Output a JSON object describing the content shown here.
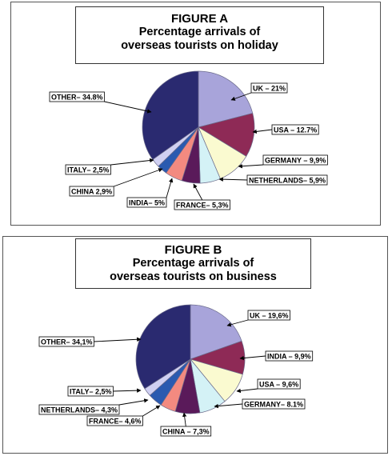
{
  "chart_data": [
    {
      "type": "pie",
      "title": "FIGURE A",
      "subtitle_line1": "Percentage arrivals of",
      "subtitle_line2": "overseas tourists on holiday",
      "slices": [
        {
          "name": "UK",
          "value": 21,
          "label": "UK – 21%",
          "color": "#a8a4da"
        },
        {
          "name": "USA",
          "value": 12.7,
          "label": "USA – 12.7%",
          "color": "#8e2a56"
        },
        {
          "name": "GERMANY",
          "value": 9.9,
          "label": "GERMANY – 9,9%",
          "color": "#fafad0"
        },
        {
          "name": "NETHERLANDS",
          "value": 5.9,
          "label": "NETHERLANDS– 5,9%",
          "color": "#d4f2f6"
        },
        {
          "name": "FRANCE",
          "value": 5.3,
          "label": "FRANCE– 5,3%",
          "color": "#5a1a5a"
        },
        {
          "name": "INDIA",
          "value": 5,
          "label": "INDIA– 5%",
          "color": "#f38a80"
        },
        {
          "name": "CHINA",
          "value": 2.9,
          "label": "CHINA 2,9%",
          "color": "#2a5ab0"
        },
        {
          "name": "ITALY",
          "value": 2.5,
          "label": "ITALY– 2,5%",
          "color": "#d0d0f2"
        },
        {
          "name": "OTHER",
          "value": 34.8,
          "label": "OTHER– 34.8%",
          "color": "#2a2a70"
        }
      ]
    },
    {
      "type": "pie",
      "title": "FIGURE B",
      "subtitle_line1": "Percentage arrivals of",
      "subtitle_line2": "overseas tourists on business",
      "slices": [
        {
          "name": "UK",
          "value": 19.6,
          "label": "UK – 19,6%",
          "color": "#a8a4da"
        },
        {
          "name": "INDIA",
          "value": 9.9,
          "label": "INDIA – 9,9%",
          "color": "#8e2a56"
        },
        {
          "name": "USA",
          "value": 9.6,
          "label": "USA – 9,6%",
          "color": "#fafad0"
        },
        {
          "name": "GERMANY",
          "value": 8.1,
          "label": "GERMANY– 8.1%",
          "color": "#d4f2f6"
        },
        {
          "name": "CHINA",
          "value": 7.3,
          "label": "CHINA – 7,3%",
          "color": "#5a1a5a"
        },
        {
          "name": "FRANCE",
          "value": 4.6,
          "label": "FRANCE– 4,6%",
          "color": "#f38a80"
        },
        {
          "name": "NETHERLANDS",
          "value": 4.3,
          "label": "NETHERLANDS– 4,3%",
          "color": "#2a5ab0"
        },
        {
          "name": "ITALY",
          "value": 2.5,
          "label": "ITALY– 2,5%",
          "color": "#d0d0f2"
        },
        {
          "name": "OTHER",
          "value": 34.1,
          "label": "OTHER– 34,1%",
          "color": "#2a2a70"
        }
      ]
    }
  ]
}
